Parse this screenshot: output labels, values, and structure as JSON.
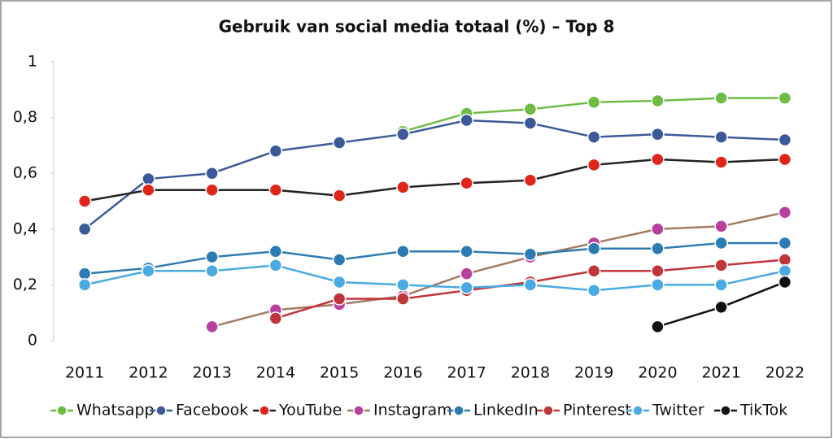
{
  "chart_data": {
    "type": "line",
    "title": "Gebruik van social media totaal (%) – Top 8",
    "categories": [
      "2011",
      "2012",
      "2013",
      "2014",
      "2015",
      "2016",
      "2017",
      "2018",
      "2019",
      "2020",
      "2021",
      "2022"
    ],
    "ylim": [
      0,
      1
    ],
    "yticks": [
      0,
      {
        "value": 0.2,
        "label": "0,2"
      },
      {
        "value": 0.4,
        "label": "0,4"
      },
      {
        "value": 0.6,
        "label": "0,6"
      },
      {
        "value": 0.8,
        "label": "0,8"
      },
      1
    ],
    "series": [
      {
        "name": "Whatsapp",
        "color": "#6dbd45",
        "marker_color": "#6dbd45",
        "values": [
          null,
          null,
          null,
          null,
          null,
          0.75,
          0.815,
          0.83,
          0.855,
          0.86,
          0.87,
          0.87
        ]
      },
      {
        "name": "Facebook",
        "color": "#3d5a98",
        "marker_color": "#3d5a98",
        "values": [
          0.4,
          0.58,
          0.6,
          0.68,
          0.71,
          0.74,
          0.79,
          0.78,
          0.73,
          0.74,
          0.73,
          0.72
        ]
      },
      {
        "name": "YouTube",
        "color": "#222222",
        "marker_color": "#e0261b",
        "values": [
          0.5,
          0.54,
          0.54,
          0.54,
          0.52,
          0.55,
          0.565,
          0.575,
          0.63,
          0.65,
          0.64,
          0.65
        ]
      },
      {
        "name": "Instagram",
        "color": "#a47a62",
        "marker_color": "#b83fa0",
        "values": [
          null,
          null,
          0.05,
          0.11,
          0.13,
          0.16,
          0.24,
          0.3,
          0.35,
          0.4,
          0.41,
          0.46
        ]
      },
      {
        "name": "LinkedIn",
        "color": "#2c7bb3",
        "marker_color": "#2c7bb3",
        "values": [
          0.24,
          0.26,
          0.3,
          0.32,
          0.29,
          0.32,
          0.32,
          0.31,
          0.33,
          0.33,
          0.35,
          0.35
        ]
      },
      {
        "name": "Pinterest",
        "color": "#c0353a",
        "marker_color": "#c0353a",
        "values": [
          null,
          null,
          null,
          0.08,
          0.15,
          0.15,
          0.18,
          0.21,
          0.25,
          0.25,
          0.27,
          0.29
        ]
      },
      {
        "name": "Twitter",
        "color": "#4aaae2",
        "marker_color": "#4aaae2",
        "values": [
          0.2,
          0.25,
          0.25,
          0.27,
          0.21,
          0.2,
          0.19,
          0.2,
          0.18,
          0.2,
          0.2,
          0.25
        ]
      },
      {
        "name": "TikTok",
        "color": "#111111",
        "marker_color": "#111111",
        "values": [
          null,
          null,
          null,
          null,
          null,
          null,
          null,
          null,
          null,
          0.05,
          0.12,
          0.21
        ]
      }
    ]
  }
}
